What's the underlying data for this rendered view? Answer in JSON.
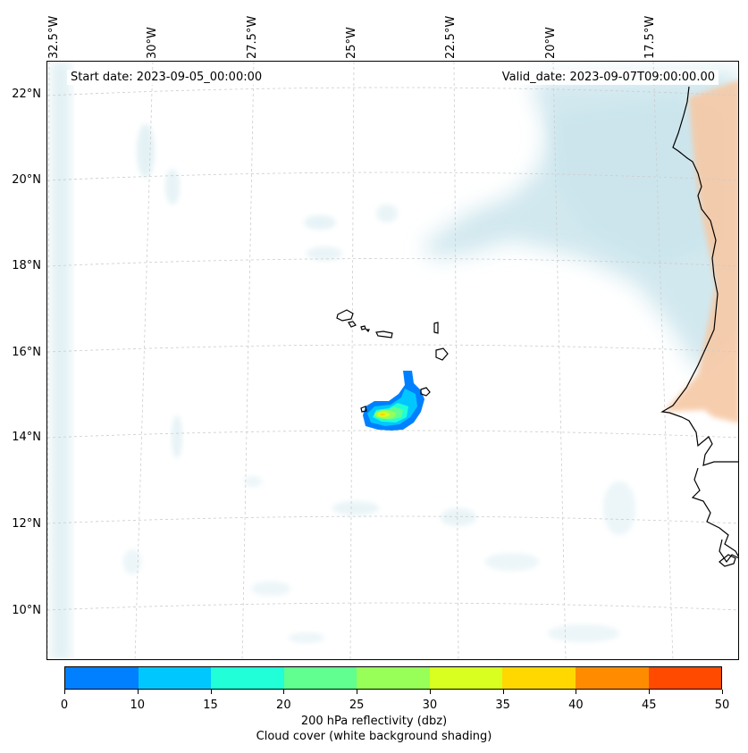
{
  "map": {
    "start_date": "Start date: 2023-09-05_00:00:00",
    "valid_date": "Valid_date: 2023-09-07T09:00:00.00",
    "longitude_labels": [
      "32.5°W",
      "30°W",
      "27.5°W",
      "25°W",
      "22.5°W",
      "20°W",
      "17.5°W"
    ],
    "latitude_labels": [
      "22°N",
      "20°N",
      "18°N",
      "16°N",
      "14°N",
      "12°N",
      "10°N"
    ],
    "features": [
      "cape-verde-islands",
      "west-africa-coastline",
      "reflectivity-cell",
      "cloud-cover-shading"
    ]
  },
  "colorbar": {
    "ticks": [
      "0",
      "10",
      "15",
      "20",
      "25",
      "30",
      "35",
      "40",
      "45",
      "50"
    ],
    "colors": [
      "#0080ff",
      "#00c8ff",
      "#20ffd8",
      "#60ff90",
      "#98ff58",
      "#d8ff20",
      "#ffd800",
      "#ff8c00",
      "#ff4a00"
    ],
    "label_line1": "200 hPa reflectivity (dbz)",
    "label_line2": "Cloud cover (white background shading)"
  },
  "colors": {
    "cloud": "#c9e4ec",
    "land_warm": "#f6c9a6",
    "grid": "#cccccc"
  }
}
